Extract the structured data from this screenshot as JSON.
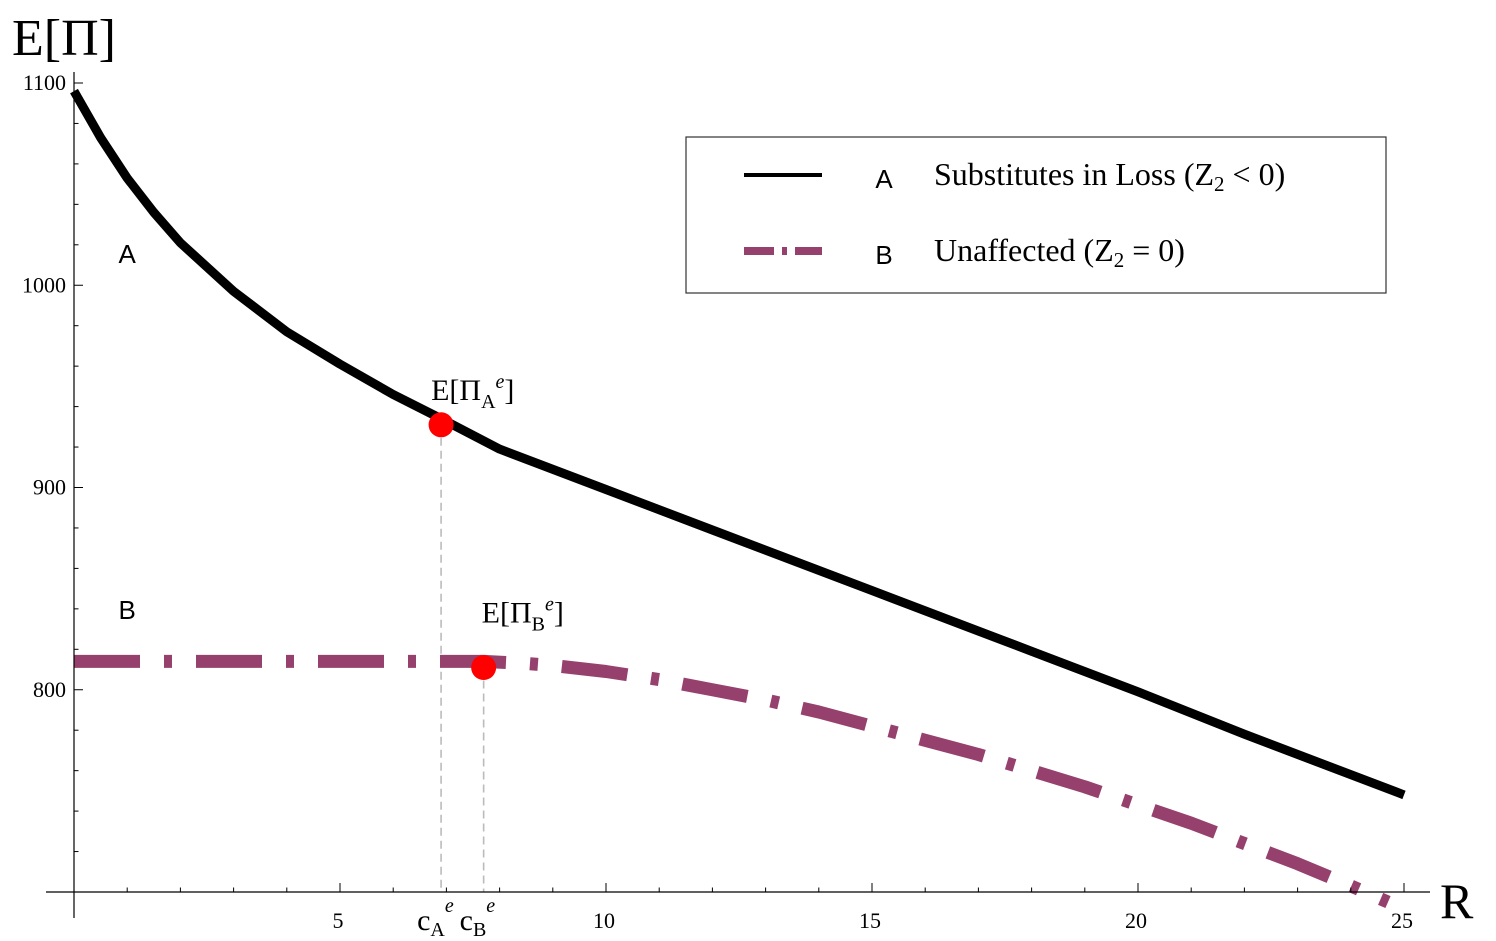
{
  "chart_data": {
    "type": "line",
    "ylabel": "E[Π]",
    "xlabel": "R",
    "xlim": [
      0,
      25
    ],
    "ylim": [
      700,
      1100
    ],
    "x_ticks": [
      5,
      10,
      15,
      20,
      25
    ],
    "y_ticks": [
      800,
      900,
      1000,
      1100
    ],
    "grid": false,
    "legend_position": "top-right",
    "legend": [
      {
        "tag": "A",
        "text": "Substitutes in Loss (Z",
        "sub": "2",
        "rel": " < 0)"
      },
      {
        "tag": "B",
        "text": "Unaffected (Z",
        "sub": "2",
        "rel": " = 0)"
      }
    ],
    "series": [
      {
        "name": "A",
        "style": "solid",
        "color": "#000000",
        "x": [
          0,
          0.5,
          1,
          1.5,
          2,
          3,
          4,
          5,
          6,
          6.9,
          8,
          10,
          12,
          15,
          18,
          20,
          22,
          25
        ],
        "y": [
          1096,
          1073,
          1053,
          1036,
          1021,
          997,
          977,
          961,
          946,
          934,
          919,
          899,
          879,
          849,
          819,
          799,
          778,
          748
        ]
      },
      {
        "name": "B",
        "style": "dashdot",
        "color": "#96406e",
        "x": [
          0,
          2,
          4,
          6,
          7.7,
          8.5,
          9,
          10,
          11,
          12,
          13,
          14,
          15,
          16,
          17,
          18,
          19,
          20,
          21,
          22,
          23,
          24,
          24.7
        ],
        "y": [
          814,
          814,
          814,
          814,
          814,
          813,
          812,
          809,
          805,
          800,
          795,
          789,
          782,
          775,
          768,
          760,
          752,
          743,
          734,
          724,
          714,
          703,
          695
        ]
      }
    ],
    "series_labels": [
      {
        "text": "A",
        "x": 1,
        "y": 1011
      },
      {
        "text": "B",
        "x": 1,
        "y": 835
      }
    ],
    "points": [
      {
        "name": "A-equilibrium",
        "x": 6.9,
        "y": 931,
        "base": "E[Π",
        "sub": "A",
        "sup": "e",
        "close": "]"
      },
      {
        "name": "B-equilibrium",
        "x": 7.7,
        "y": 811,
        "base": "E[Π",
        "sub": "B",
        "sup": "e",
        "close": "]"
      }
    ],
    "x_markers": [
      {
        "base": "c",
        "sub": "A",
        "sup": "e",
        "x": 6.9
      },
      {
        "base": "c",
        "sub": "B",
        "sup": "e",
        "x": 7.7
      }
    ],
    "colors": {
      "axis": "#000000",
      "point": "#ff0000",
      "guide": "#bbbbbb",
      "legend_border": "#333333"
    }
  }
}
